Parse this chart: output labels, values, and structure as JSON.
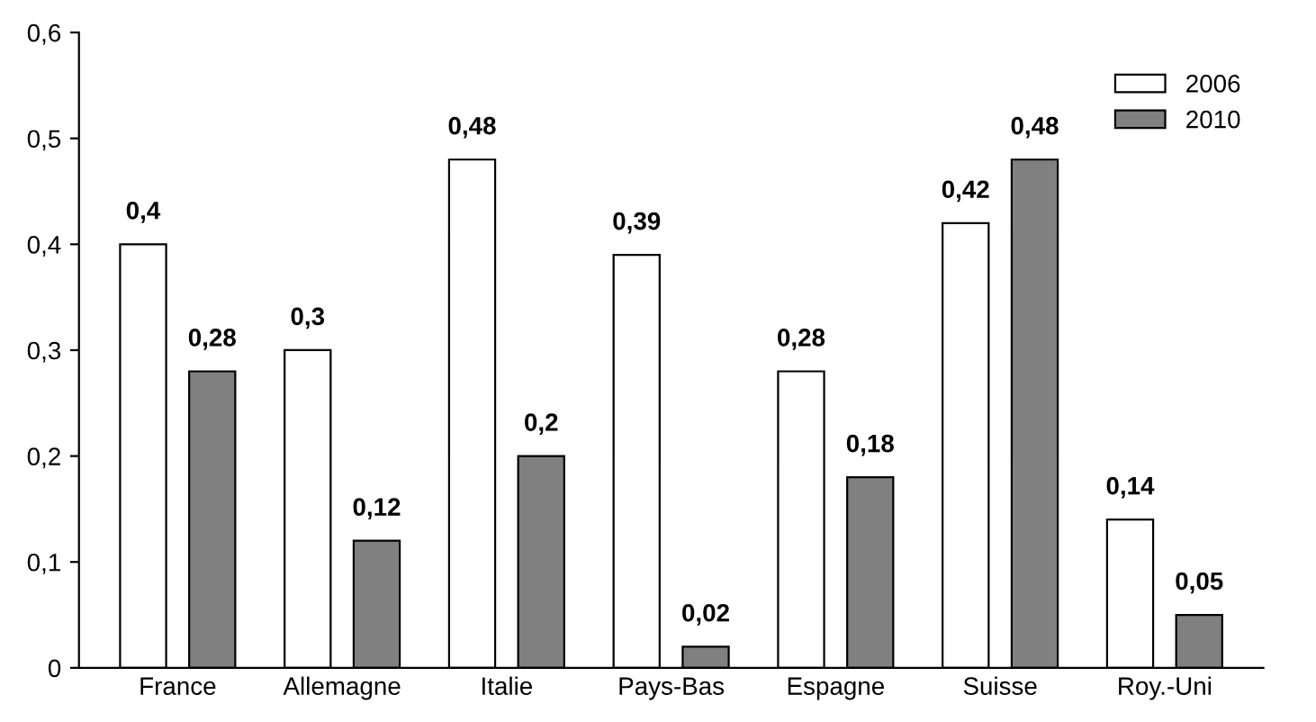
{
  "chart_data": {
    "type": "bar",
    "categories": [
      "France",
      "Allemagne",
      "Italie",
      "Pays-Bas",
      "Espagne",
      "Suisse",
      "Roy.-Uni"
    ],
    "series": [
      {
        "name": "2006",
        "color": "#ffffff",
        "values": [
          0.4,
          0.3,
          0.48,
          0.39,
          0.28,
          0.42,
          0.14
        ],
        "value_labels": [
          "0,4",
          "0,3",
          "0,48",
          "0,39",
          "0,28",
          "0,42",
          "0,14"
        ]
      },
      {
        "name": "2010",
        "color": "#808080",
        "values": [
          0.28,
          0.12,
          0.2,
          0.02,
          0.18,
          0.48,
          0.05
        ],
        "value_labels": [
          "0,28",
          "0,12",
          "0,2",
          "0,02",
          "0,18",
          "0,48",
          "0,05"
        ]
      }
    ],
    "ylim": [
      0,
      0.6
    ],
    "yticks": [
      0,
      {
        "value": 0.1,
        "label": "0,1"
      },
      {
        "value": 0.2,
        "label": "0,2"
      },
      {
        "value": 0.3,
        "label": "0,3"
      },
      {
        "value": 0.4,
        "label": "0,4"
      },
      {
        "value": 0.5,
        "label": "0,5"
      },
      {
        "value": 0.6,
        "label": "0,6"
      }
    ],
    "grid": false,
    "legend": "top right"
  }
}
